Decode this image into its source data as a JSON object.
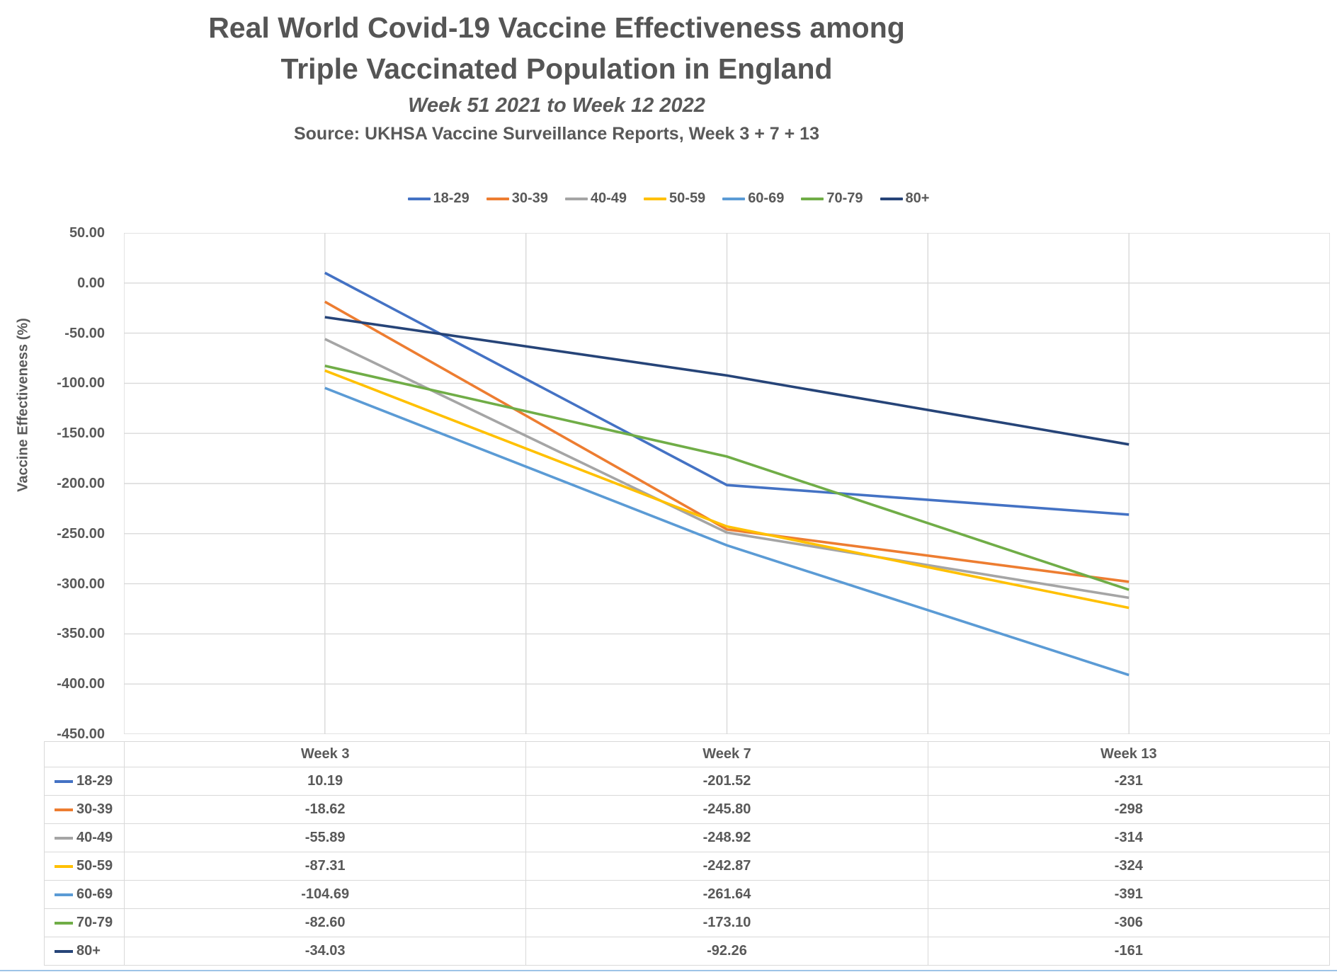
{
  "header": {
    "title_line1": "Real World Covid-19 Vaccine Effectiveness among",
    "title_line2": "Triple Vaccinated Population in England",
    "subtitle": "Week 51 2021 to Week 12 2022",
    "source": "Source: UKHSA Vaccine Surveillance Reports, Week 3 + 7 + 13"
  },
  "y_axis": {
    "title": "Vaccine Effectiveness (%)",
    "tick_labels": [
      "50.00",
      "0.00",
      "-50.00",
      "-100.00",
      "-150.00",
      "-200.00",
      "-250.00",
      "-300.00",
      "-350.00",
      "-400.00",
      "-450.00"
    ]
  },
  "chart_data": {
    "type": "line",
    "title": "Real World Covid-19 Vaccine Effectiveness among Triple Vaccinated Population in England",
    "subtitle": "Week 51 2021 to Week 12 2022",
    "categories": [
      "Week 3",
      "Week 7",
      "Week 13"
    ],
    "series": [
      {
        "name": "18-29",
        "color": "#4472C4",
        "values": [
          10.19,
          -201.52,
          -231
        ]
      },
      {
        "name": "30-39",
        "color": "#ED7D31",
        "values": [
          -18.62,
          -245.8,
          -298
        ]
      },
      {
        "name": "40-49",
        "color": "#A5A5A5",
        "values": [
          -55.89,
          -248.92,
          -314
        ]
      },
      {
        "name": "50-59",
        "color": "#FFC000",
        "values": [
          -87.31,
          -242.87,
          -324
        ]
      },
      {
        "name": "60-69",
        "color": "#5B9BD5",
        "values": [
          -104.69,
          -261.64,
          -391
        ]
      },
      {
        "name": "70-79",
        "color": "#70AD47",
        "values": [
          -82.6,
          -173.1,
          -306
        ]
      },
      {
        "name": "80+",
        "color": "#264478",
        "values": [
          -34.03,
          -92.26,
          -161
        ]
      }
    ],
    "ylabel": "Vaccine Effectiveness (%)",
    "ylim": [
      -450,
      50
    ],
    "y_tick_step": 50,
    "grid": true,
    "legend_position": "top"
  },
  "table": {
    "col_headers": [
      "Week 3",
      "Week 7",
      "Week 13"
    ],
    "rows": [
      {
        "label": "18-29",
        "values": [
          "10.19",
          "-201.52",
          "-231"
        ]
      },
      {
        "label": "30-39",
        "values": [
          "-18.62",
          "-245.80",
          "-298"
        ]
      },
      {
        "label": "40-49",
        "values": [
          "-55.89",
          "-248.92",
          "-314"
        ]
      },
      {
        "label": "50-59",
        "values": [
          "-87.31",
          "-242.87",
          "-324"
        ]
      },
      {
        "label": "60-69",
        "values": [
          "-104.69",
          "-261.64",
          "-391"
        ]
      },
      {
        "label": "70-79",
        "values": [
          "-82.60",
          "-173.10",
          "-306"
        ]
      },
      {
        "label": "80+",
        "values": [
          "-34.03",
          "-92.26",
          "-161"
        ]
      }
    ]
  },
  "colors": {
    "grid_line": "#D9D9D9",
    "text": "#595959",
    "table_border": "#D9D9D9",
    "bottom_line": "#9DC3E6"
  }
}
